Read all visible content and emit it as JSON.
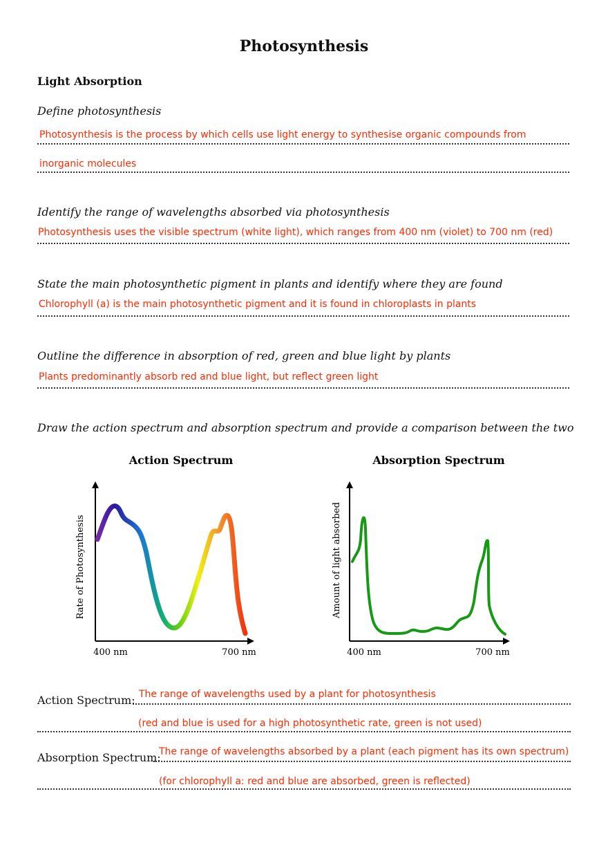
{
  "title": "Photosynthesis",
  "section": "Light Absorption",
  "questions": [
    {
      "prompt": "Define photosynthesis",
      "answer": [
        "Photosynthesis is the process by which cells use light energy to synthesise organic compounds from",
        "inorganic molecules"
      ]
    },
    {
      "prompt": "Identify the range of wavelengths absorbed via photosynthesis",
      "answer": [
        "Photosynthesis uses the visible spectrum (white light), which ranges from 400 nm (violet) to 700 nm (red)"
      ]
    },
    {
      "prompt": "State the main photosynthetic pigment in plants and identify where they are found",
      "answer": [
        "Chlorophyll (a) is the main photosynthetic pigment and it is found in chloroplasts in plants"
      ]
    },
    {
      "prompt": "Outline the difference in absorption of red, green and blue light by plants",
      "answer": [
        "Plants predominantly absorb red and blue light, but reflect green light"
      ]
    }
  ],
  "diagram_prompt": "Draw the action spectrum and absorption spectrum and provide a comparison between the two",
  "graphs": [
    {
      "title": "Action Spectrum",
      "y_label": "Rate of Photosynthesis",
      "x_start": "400 nm",
      "x_end": "700 nm"
    },
    {
      "title": "Absorption Spectrum",
      "y_label": "Amount of light absorbed",
      "x_start": "400 nm",
      "x_end": "700 nm"
    }
  ],
  "comparison": [
    {
      "label": "Action Spectrum:",
      "answer": [
        "The range of wavelengths used by a plant for photosynthesis",
        "(red and blue is used for a high photosynthetic rate, green is not used)"
      ]
    },
    {
      "label": "Absorption Spectrum:",
      "answer": [
        "The range of wavelengths absorbed by a plant (each pigment has its own spectrum)",
        "(for chlorophyll a: red and blue are absorbed, green is reflected)"
      ]
    }
  ]
}
